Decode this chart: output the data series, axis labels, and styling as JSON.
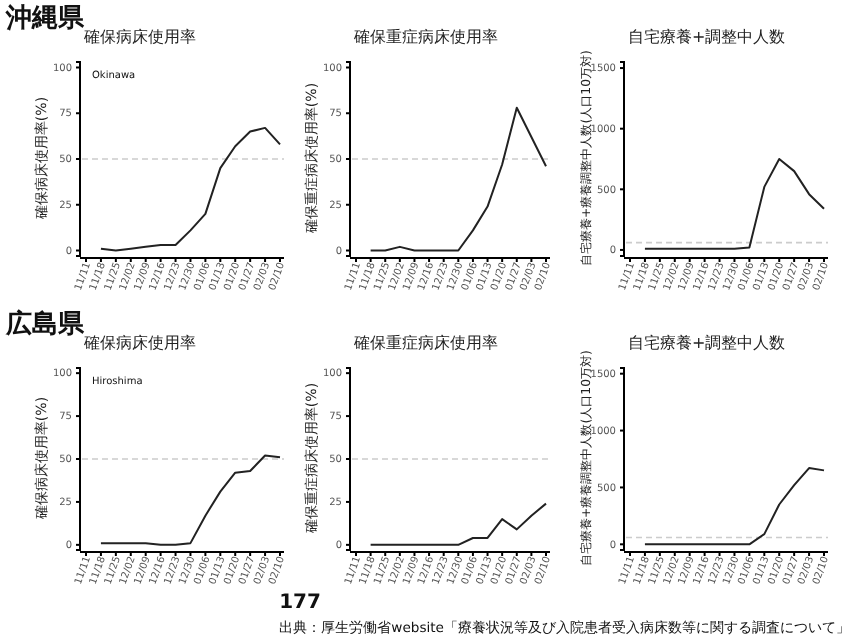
{
  "chart_data": [
    {
      "type": "line",
      "title": "確保病床使用率",
      "ylabel": "確保病床使用率(%)",
      "categories": [
        "11/11",
        "11/18",
        "11/25",
        "12/02",
        "12/09",
        "12/16",
        "12/23",
        "12/30",
        "01/06",
        "01/13",
        "01/20",
        "01/27",
        "02/03",
        "02/10"
      ],
      "values": [
        null,
        1,
        0,
        1,
        2,
        3,
        3,
        11,
        20,
        45,
        57,
        65,
        67,
        58
      ],
      "color": "#222222",
      "ylim": [
        -3,
        103
      ],
      "yticks": [
        0,
        25,
        50,
        75,
        100
      ],
      "ref_lines": [
        {
          "axis": "y",
          "value": 50,
          "color": "#cccccc",
          "line_style": "dashed"
        }
      ],
      "annotations": [
        "沖縄県",
        "Okinawa"
      ]
    },
    {
      "type": "line",
      "title": "確保重症病床使用率",
      "ylabel": "確保重症病床使用率(%)",
      "categories": [
        "11/11",
        "11/18",
        "11/25",
        "12/02",
        "12/09",
        "12/16",
        "12/23",
        "12/30",
        "01/06",
        "01/13",
        "01/20",
        "01/27",
        "02/03",
        "02/10"
      ],
      "values": [
        null,
        0,
        0,
        2,
        0,
        0,
        0,
        0,
        11,
        24,
        47,
        78,
        62,
        46
      ],
      "color": "#222222",
      "ylim": [
        -3,
        103
      ],
      "yticks": [
        0,
        25,
        50,
        75,
        100
      ],
      "ref_lines": [
        {
          "axis": "y",
          "value": 50,
          "color": "#cccccc",
          "line_style": "dashed"
        }
      ]
    },
    {
      "type": "line",
      "title": "自宅療養+調整中人数",
      "ylabel": "自宅療養+療養調整中人数(人口10万対)",
      "categories": [
        "11/11",
        "11/18",
        "11/25",
        "12/02",
        "12/09",
        "12/16",
        "12/23",
        "12/30",
        "01/06",
        "01/13",
        "01/20",
        "01/27",
        "02/03",
        "02/10"
      ],
      "values": [
        null,
        10,
        10,
        10,
        10,
        10,
        10,
        10,
        20,
        520,
        750,
        650,
        460,
        340
      ],
      "color": "#222222",
      "ylim": [
        -50,
        1550
      ],
      "yticks": [
        0,
        500,
        1000,
        1500
      ],
      "ref_lines": [
        {
          "axis": "y",
          "value": 60,
          "color": "#cccccc",
          "line_style": "dashed"
        }
      ]
    },
    {
      "type": "line",
      "title": "確保病床使用率",
      "ylabel": "確保病床使用率(%)",
      "categories": [
        "11/11",
        "11/18",
        "11/25",
        "12/02",
        "12/09",
        "12/16",
        "12/23",
        "12/30",
        "01/06",
        "01/13",
        "01/20",
        "01/27",
        "02/03",
        "02/10"
      ],
      "values": [
        null,
        1,
        1,
        1,
        1,
        0,
        0,
        1,
        17,
        31,
        42,
        43,
        52,
        51
      ],
      "color": "#222222",
      "ylim": [
        -3,
        103
      ],
      "yticks": [
        0,
        25,
        50,
        75,
        100
      ],
      "ref_lines": [
        {
          "axis": "y",
          "value": 50,
          "color": "#cccccc",
          "line_style": "dashed"
        }
      ],
      "annotations": [
        "広島県",
        "Hiroshima"
      ]
    },
    {
      "type": "line",
      "title": "確保重症病床使用率",
      "ylabel": "確保重症病床使用率(%)",
      "categories": [
        "11/11",
        "11/18",
        "11/25",
        "12/02",
        "12/09",
        "12/16",
        "12/23",
        "12/30",
        "01/06",
        "01/13",
        "01/20",
        "01/27",
        "02/03",
        "02/10"
      ],
      "values": [
        null,
        0,
        0,
        0,
        0,
        0,
        0,
        0,
        4,
        4,
        15,
        9,
        17,
        24
      ],
      "color": "#222222",
      "ylim": [
        -3,
        103
      ],
      "yticks": [
        0,
        25,
        50,
        75,
        100
      ],
      "ref_lines": [
        {
          "axis": "y",
          "value": 50,
          "color": "#cccccc",
          "line_style": "dashed"
        }
      ]
    },
    {
      "type": "line",
      "title": "自宅療養+調整中人数",
      "ylabel": "自宅療養+療養調整中人数(人口10万対)",
      "categories": [
        "11/11",
        "11/18",
        "11/25",
        "12/02",
        "12/09",
        "12/16",
        "12/23",
        "12/30",
        "01/06",
        "01/13",
        "01/20",
        "01/27",
        "02/03",
        "02/10"
      ],
      "values": [
        null,
        0,
        0,
        0,
        0,
        0,
        0,
        0,
        0,
        90,
        350,
        520,
        670,
        650
      ],
      "color": "#222222",
      "ylim": [
        -50,
        1550
      ],
      "yticks": [
        0,
        500,
        1000,
        1500
      ],
      "ref_lines": [
        {
          "axis": "y",
          "value": 60,
          "color": "#cccccc",
          "line_style": "dashed"
        }
      ],
      "annotations": [
        "177",
        "出典：厚生労働省website「療養状況等及び入院患者受入病床数等に関する調査について」"
      ]
    }
  ]
}
